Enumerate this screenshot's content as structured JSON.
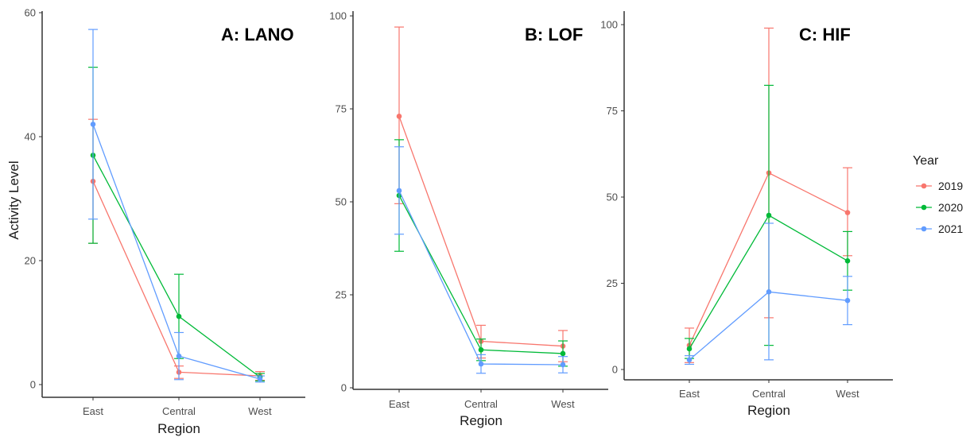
{
  "chart_data": [
    {
      "type": "line",
      "title": "A:  LANO",
      "xlabel": "Region",
      "ylabel": "Activity Level",
      "categories": [
        "East",
        "Central",
        "West"
      ],
      "ylim": [
        0,
        60
      ],
      "yticks": [
        0,
        20,
        40,
        60
      ],
      "series": [
        {
          "name": "2019",
          "values": [
            32.8,
            2.0,
            1.4
          ],
          "lower": [
            22.8,
            1.0,
            0.7
          ],
          "upper": [
            42.8,
            3.0,
            2.1
          ]
        },
        {
          "name": "2020",
          "values": [
            37.0,
            11.0,
            1.2
          ],
          "lower": [
            22.8,
            4.2,
            0.6
          ],
          "upper": [
            51.2,
            17.8,
            1.8
          ]
        },
        {
          "name": "2021",
          "values": [
            42.0,
            4.6,
            0.9
          ],
          "lower": [
            26.7,
            0.8,
            0.4
          ],
          "upper": [
            57.3,
            8.4,
            1.4
          ]
        }
      ]
    },
    {
      "type": "line",
      "title": "B:  LOF",
      "xlabel": "Region",
      "ylabel": "",
      "categories": [
        "East",
        "Central",
        "West"
      ],
      "ylim": [
        0,
        100
      ],
      "yticks": [
        0,
        25,
        50,
        75,
        100
      ],
      "series": [
        {
          "name": "2019",
          "values": [
            73.0,
            12.5,
            11.2
          ],
          "lower": [
            49.5,
            8.0,
            7.0
          ],
          "upper": [
            97.0,
            16.8,
            15.4
          ]
        },
        {
          "name": "2020",
          "values": [
            51.7,
            10.2,
            9.2
          ],
          "lower": [
            36.7,
            7.3,
            5.8
          ],
          "upper": [
            66.7,
            13.1,
            12.6
          ]
        },
        {
          "name": "2021",
          "values": [
            53.0,
            6.4,
            6.2
          ],
          "lower": [
            41.3,
            3.9,
            4.0
          ],
          "upper": [
            64.8,
            8.9,
            8.4
          ]
        }
      ]
    },
    {
      "type": "line",
      "title": "C:  HIF",
      "xlabel": "Region",
      "ylabel": "",
      "categories": [
        "East",
        "Central",
        "West"
      ],
      "ylim": [
        0,
        100
      ],
      "yticks": [
        0,
        25,
        50,
        75,
        100
      ],
      "series": [
        {
          "name": "2019",
          "values": [
            7.0,
            57.0,
            45.5
          ],
          "lower": [
            2.0,
            15.0,
            33.0
          ],
          "upper": [
            12.0,
            99.0,
            58.5
          ]
        },
        {
          "name": "2020",
          "values": [
            6.0,
            44.7,
            31.5
          ],
          "lower": [
            3.2,
            7.0,
            23.0
          ],
          "upper": [
            9.0,
            82.4,
            40.0
          ]
        },
        {
          "name": "2021",
          "values": [
            2.8,
            22.5,
            20.0
          ],
          "lower": [
            1.5,
            2.8,
            13.0
          ],
          "upper": [
            4.0,
            42.4,
            27.0
          ]
        }
      ]
    }
  ],
  "legend": {
    "title": "Year",
    "items": [
      {
        "label": "2019",
        "color": "#F8766D"
      },
      {
        "label": "2020",
        "color": "#00BA38"
      },
      {
        "label": "2021",
        "color": "#619CFF"
      }
    ]
  },
  "colors": {
    "2019": "#F8766D",
    "2020": "#00BA38",
    "2021": "#619CFF"
  }
}
